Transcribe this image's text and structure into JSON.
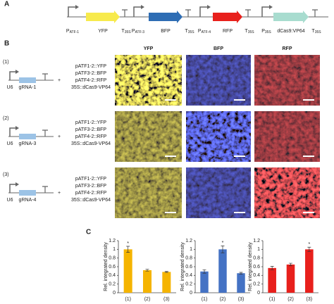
{
  "panel_labels": [
    "A",
    "B",
    "C"
  ],
  "construct": [
    {
      "kind": "promoter",
      "label": {
        "main": "P",
        "sub": "ATF-1"
      }
    },
    {
      "kind": "gene",
      "label": "YFP",
      "color": "#f7ea4c"
    },
    {
      "kind": "terminator",
      "label": {
        "main": "T",
        "sub": "35S"
      }
    },
    {
      "kind": "promoter",
      "label": {
        "main": "P",
        "sub": "ATF-3"
      }
    },
    {
      "kind": "gene",
      "label": "BFP",
      "color": "#2e6db4"
    },
    {
      "kind": "terminator",
      "label": {
        "main": "T",
        "sub": "35S"
      }
    },
    {
      "kind": "promoter",
      "label": {
        "main": "P",
        "sub": "ATF-4"
      }
    },
    {
      "kind": "gene",
      "label": "RFP",
      "color": "#e8201c"
    },
    {
      "kind": "terminator",
      "label": {
        "main": "T",
        "sub": "35S"
      }
    },
    {
      "kind": "promoter",
      "label": {
        "main": "P",
        "sub": "35S"
      }
    },
    {
      "kind": "gene",
      "label": "dCas9:VP64",
      "color": "#a8dccf"
    },
    {
      "kind": "terminator",
      "label": {
        "main": "T",
        "sub": "35S"
      }
    }
  ],
  "channels": [
    "YFP",
    "BFP",
    "RFP"
  ],
  "rows": [
    {
      "label": "(1)",
      "promoter": "U6",
      "grna": "gRNA-1",
      "plus": "+",
      "lines": [
        {
          "text": "pATF1-2::YFP",
          "color": "#e8201c"
        },
        {
          "text": "pATF3-2::BFP",
          "color": "#222222"
        },
        {
          "text": "pATF4-2::RFP",
          "color": "#222222"
        },
        {
          "text": "35S::dCas9-VP64",
          "color": "#222222"
        }
      ]
    },
    {
      "label": "(2)",
      "promoter": "U6",
      "grna": "gRNA-3",
      "plus": "+",
      "lines": [
        {
          "text": "pATF1-2::YFP",
          "color": "#222222"
        },
        {
          "text": "pATF3-2::BFP",
          "color": "#e8201c"
        },
        {
          "text": "pATF4-2::RFP",
          "color": "#222222"
        },
        {
          "text": "35S::dCas9-VP64",
          "color": "#222222"
        }
      ]
    },
    {
      "label": "(3)",
      "promoter": "U6",
      "grna": "gRNA-4",
      "plus": "+",
      "lines": [
        {
          "text": "pATF1-2::YFP",
          "color": "#222222"
        },
        {
          "text": "pATF3-2::BFP",
          "color": "#222222"
        },
        {
          "text": "pATF4-2::RFP",
          "color": "#e8201c"
        },
        {
          "text": "35S::dCas9-VP64",
          "color": "#222222"
        }
      ]
    }
  ],
  "chart_data": [
    {
      "type": "bar",
      "ylabel": "Rel. integrated density",
      "categories": [
        "(1)",
        "(2)",
        "(3)"
      ],
      "values": [
        1.0,
        0.52,
        0.48
      ],
      "errors": [
        0.07,
        0.02,
        0.01
      ],
      "significance": [
        "*",
        null,
        null
      ],
      "color": "#f5b400",
      "ylim": [
        0,
        1.2
      ],
      "yticks": [
        0,
        0.2,
        0.4,
        0.6,
        0.8,
        1,
        1.2
      ]
    },
    {
      "type": "bar",
      "ylabel": "Rel. integrated density",
      "categories": [
        "(1)",
        "(2)",
        "(3)"
      ],
      "values": [
        0.49,
        1.0,
        0.45
      ],
      "errors": [
        0.04,
        0.08,
        0.02
      ],
      "significance": [
        null,
        "*",
        null
      ],
      "color": "#4472c4",
      "ylim": [
        0,
        1.2
      ],
      "yticks": [
        0,
        0.2,
        0.4,
        0.6,
        0.8,
        1,
        1.2
      ]
    },
    {
      "type": "bar",
      "ylabel": "Rel. integrated density",
      "categories": [
        "(1)",
        "(2)",
        "(3)"
      ],
      "values": [
        0.57,
        0.65,
        1.0
      ],
      "errors": [
        0.04,
        0.03,
        0.05
      ],
      "significance": [
        null,
        null,
        "*"
      ],
      "color": "#e8201c",
      "ylim": [
        0,
        1.2
      ],
      "yticks": [
        0,
        0.2,
        0.4,
        0.6,
        0.8,
        1,
        1.2
      ]
    }
  ]
}
